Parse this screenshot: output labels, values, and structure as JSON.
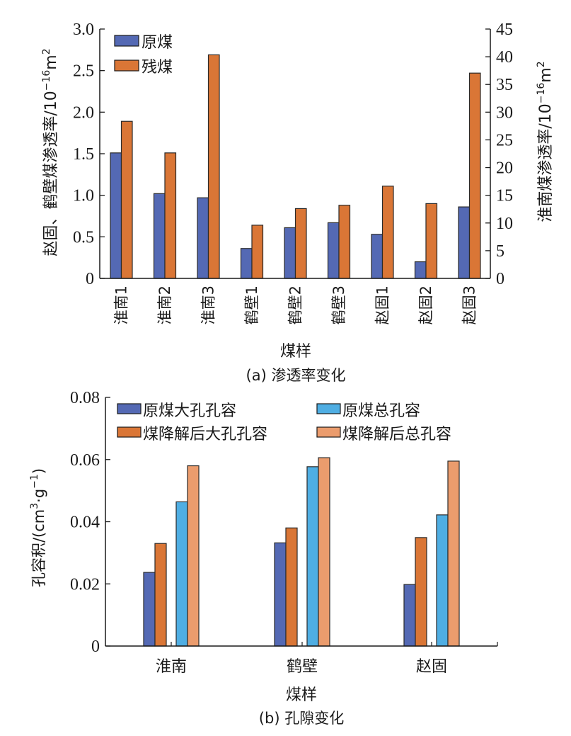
{
  "chart_data": [
    {
      "type": "bar",
      "caption": "(a) 渗透率变化",
      "xlabel": "煤样",
      "ylabel_left": {
        "text": "赵固、鹤壁煤渗透率/10",
        "sup": "−16",
        "unit": "m",
        "unit_sup": "2"
      },
      "ylabel_right": {
        "text": "淮南煤渗透率/10",
        "sup": "−16",
        "unit": "m",
        "unit_sup": "2"
      },
      "categories": [
        "淮南1",
        "淮南2",
        "淮南3",
        "鹤壁1",
        "鹤壁2",
        "鹤壁3",
        "赵固1",
        "赵固2",
        "赵固3"
      ],
      "series": [
        {
          "name": "原煤",
          "color": "#5469B4",
          "values": [
            1.51,
            1.02,
            0.97,
            0.36,
            0.61,
            0.67,
            0.53,
            0.2,
            0.86
          ]
        },
        {
          "name": "残煤",
          "color": "#DA7636",
          "values": [
            1.89,
            1.51,
            2.69,
            0.64,
            0.84,
            0.88,
            1.11,
            0.9,
            2.47
          ]
        }
      ],
      "ylim_left": [
        0,
        3.0
      ],
      "yticks_left": [
        "0",
        "0.5",
        "1.0",
        "1.5",
        "2.0",
        "2.5",
        "3.0"
      ],
      "ylim_right": [
        0,
        45
      ],
      "yticks_right": [
        "0",
        "5",
        "10",
        "15",
        "20",
        "25",
        "30",
        "35",
        "40",
        "45"
      ],
      "legend": "top-left",
      "grid": false
    },
    {
      "type": "bar",
      "caption": "(b) 孔隙变化",
      "xlabel": "煤样",
      "ylabel": {
        "text": "孔容积/(cm",
        "sup1": "3",
        "mid": "·g",
        "sup2": "−1",
        "end": ")"
      },
      "categories": [
        "淮南",
        "鹤壁",
        "赵固"
      ],
      "series": [
        {
          "name": "原煤大孔孔容",
          "color": "#5469B4",
          "values": [
            0.0237,
            0.0332,
            0.0198
          ]
        },
        {
          "name": "煤降解后大孔孔容",
          "color": "#DA7636",
          "values": [
            0.033,
            0.038,
            0.0349
          ]
        },
        {
          "name": "原煤总孔容",
          "color": "#4FAEE3",
          "values": [
            0.0464,
            0.0577,
            0.0422
          ]
        },
        {
          "name": "煤降解后总孔容",
          "color": "#EB9C6D",
          "values": [
            0.058,
            0.0606,
            0.0595
          ]
        }
      ],
      "ylim": [
        0,
        0.08
      ],
      "yticks": [
        "0",
        "0.02",
        "0.04",
        "0.06",
        "0.08"
      ],
      "legend": "top",
      "grid": false
    }
  ]
}
